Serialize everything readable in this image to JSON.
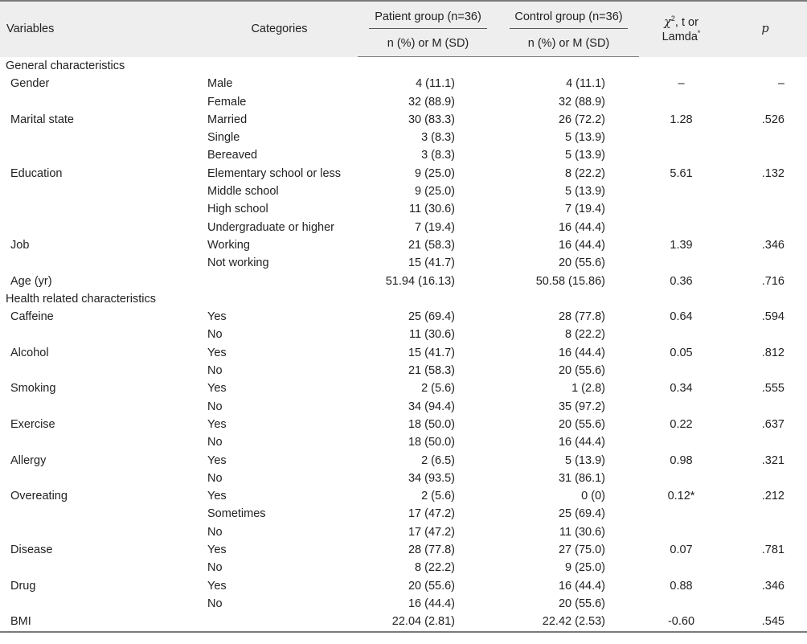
{
  "header": {
    "variables": "Variables",
    "categories": "Categories",
    "patient_group": "Patient group (n=36)",
    "control_group": "Control group (n=36)",
    "sub_patient": "n (%) or M (SD)",
    "sub_control": "n (%) or M (SD)",
    "stat_symbol": "χ",
    "stat_sup": "2",
    "stat_rest": ", t or",
    "stat_line2": "Lamda",
    "stat_star": "*",
    "p": "p"
  },
  "rows": [
    {
      "type": "section",
      "label": "General characteristics"
    },
    {
      "type": "row",
      "variable": "Gender",
      "category": "Male",
      "patient": "4 (11.1)",
      "control": "4 (11.1)",
      "stat": "–",
      "p": "–"
    },
    {
      "type": "row",
      "variable": "",
      "category": "Female",
      "patient": "32 (88.9)",
      "control": "32 (88.9)",
      "stat": "",
      "p": ""
    },
    {
      "type": "row",
      "variable": "Marital state",
      "category": "Married",
      "patient": "30 (83.3)",
      "control": "26 (72.2)",
      "stat": "1.28",
      "p": ".526"
    },
    {
      "type": "row",
      "variable": "",
      "category": "Single",
      "patient": "3 (8.3)",
      "control": "5 (13.9)",
      "stat": "",
      "p": ""
    },
    {
      "type": "row",
      "variable": "",
      "category": "Bereaved",
      "patient": "3 (8.3)",
      "control": "5 (13.9)",
      "stat": "",
      "p": ""
    },
    {
      "type": "row",
      "variable": "Education",
      "category": "Elementary school or less",
      "patient": "9 (25.0)",
      "control": "8 (22.2)",
      "stat": "5.61",
      "p": ".132"
    },
    {
      "type": "row",
      "variable": "",
      "category": "Middle school",
      "patient": "9 (25.0)",
      "control": "5 (13.9)",
      "stat": "",
      "p": ""
    },
    {
      "type": "row",
      "variable": "",
      "category": "High school",
      "patient": "11 (30.6)",
      "control": "7 (19.4)",
      "stat": "",
      "p": ""
    },
    {
      "type": "row",
      "variable": "",
      "category": "Undergraduate or higher",
      "patient": "7 (19.4)",
      "control": "16 (44.4)",
      "stat": "",
      "p": ""
    },
    {
      "type": "row",
      "variable": "Job",
      "category": "Working",
      "patient": "21 (58.3)",
      "control": "16 (44.4)",
      "stat": "1.39",
      "p": ".346"
    },
    {
      "type": "row",
      "variable": "",
      "category": "Not working",
      "patient": "15 (41.7)",
      "control": "20 (55.6)",
      "stat": "",
      "p": ""
    },
    {
      "type": "row",
      "variable": "Age (yr)",
      "category": "",
      "patient": "51.94 (16.13)",
      "control": "50.58 (15.86)",
      "stat": "0.36",
      "p": ".716"
    },
    {
      "type": "section",
      "label": "Health related characteristics"
    },
    {
      "type": "row",
      "variable": "Caffeine",
      "category": "Yes",
      "patient": "25 (69.4)",
      "control": "28 (77.8)",
      "stat": "0.64",
      "p": ".594"
    },
    {
      "type": "row",
      "variable": "",
      "category": "No",
      "patient": "11 (30.6)",
      "control": "8 (22.2)",
      "stat": "",
      "p": ""
    },
    {
      "type": "row",
      "variable": "Alcohol",
      "category": "Yes",
      "patient": "15 (41.7)",
      "control": "16 (44.4)",
      "stat": "0.05",
      "p": ".812"
    },
    {
      "type": "row",
      "variable": "",
      "category": "No",
      "patient": "21 (58.3)",
      "control": "20 (55.6)",
      "stat": "",
      "p": ""
    },
    {
      "type": "row",
      "variable": "Smoking",
      "category": "Yes",
      "patient": "2 (5.6)",
      "control": "1 (2.8)",
      "stat": "0.34",
      "p": ".555"
    },
    {
      "type": "row",
      "variable": "",
      "category": "No",
      "patient": "34 (94.4)",
      "control": "35 (97.2)",
      "stat": "",
      "p": ""
    },
    {
      "type": "row",
      "variable": "Exercise",
      "category": "Yes",
      "patient": "18 (50.0)",
      "control": "20 (55.6)",
      "stat": "0.22",
      "p": ".637"
    },
    {
      "type": "row",
      "variable": "",
      "category": "No",
      "patient": "18 (50.0)",
      "control": "16 (44.4)",
      "stat": "",
      "p": ""
    },
    {
      "type": "row",
      "variable": "Allergy",
      "category": "Yes",
      "patient": "2 (6.5)",
      "control": "5 (13.9)",
      "stat": "0.98",
      "p": ".321"
    },
    {
      "type": "row",
      "variable": "",
      "category": "No",
      "patient": "34 (93.5)",
      "control": "31 (86.1)",
      "stat": "",
      "p": ""
    },
    {
      "type": "row",
      "variable": "Overeating",
      "category": "Yes",
      "patient": "2 (5.6)",
      "control": "0 (0)",
      "stat": "0.12*",
      "p": ".212"
    },
    {
      "type": "row",
      "variable": "",
      "category": "Sometimes",
      "patient": "17 (47.2)",
      "control": "25 (69.4)",
      "stat": "",
      "p": ""
    },
    {
      "type": "row",
      "variable": "",
      "category": "No",
      "patient": "17 (47.2)",
      "control": "11 (30.6)",
      "stat": "",
      "p": ""
    },
    {
      "type": "row",
      "variable": "Disease",
      "category": "Yes",
      "patient": "28 (77.8)",
      "control": "27 (75.0)",
      "stat": "0.07",
      "p": ".781"
    },
    {
      "type": "row",
      "variable": "",
      "category": "No",
      "patient": "8 (22.2)",
      "control": "9 (25.0)",
      "stat": "",
      "p": ""
    },
    {
      "type": "row",
      "variable": "Drug",
      "category": "Yes",
      "patient": "20 (55.6)",
      "control": "16 (44.4)",
      "stat": "0.88",
      "p": ".346"
    },
    {
      "type": "row",
      "variable": "",
      "category": "No",
      "patient": "16 (44.4)",
      "control": "20 (55.6)",
      "stat": "",
      "p": ""
    },
    {
      "type": "row",
      "variable": "BMI",
      "category": "",
      "patient": "22.04 (2.81)",
      "control": "22.42 (2.53)",
      "stat": "-0.60",
      "p": ".545"
    }
  ]
}
